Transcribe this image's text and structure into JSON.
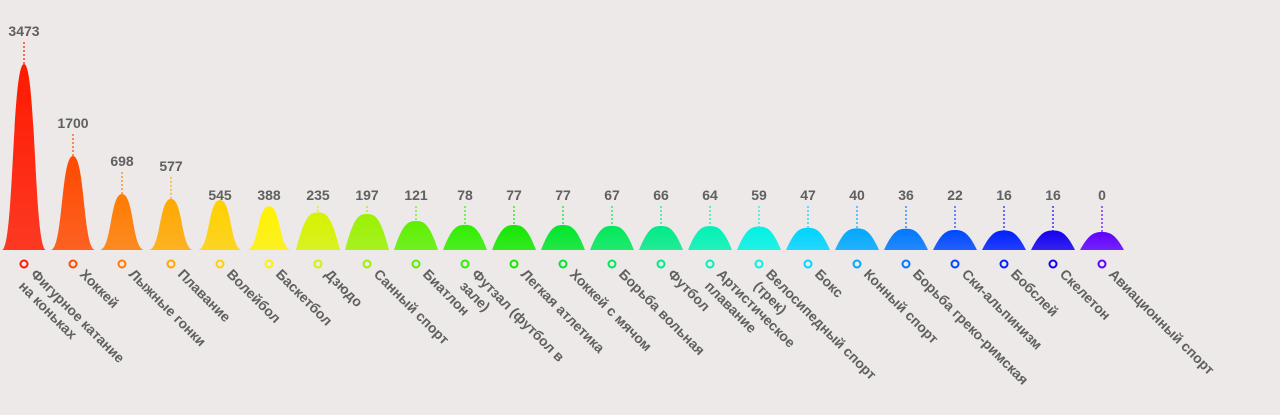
{
  "chart_data": {
    "type": "area",
    "title": "",
    "xlabel": "",
    "ylabel": "",
    "legend": "none",
    "grid": false,
    "categories": [
      [
        "Фигурное катание",
        "на коньках"
      ],
      [
        "Хоккей"
      ],
      [
        "Лыжные гонки"
      ],
      [
        "Плавание"
      ],
      [
        "Волейбол"
      ],
      [
        "Баскетбол"
      ],
      [
        "Дзюдо"
      ],
      [
        "Санный спорт"
      ],
      [
        "Биатлон"
      ],
      [
        "Футзал (футбол в",
        "зале)"
      ],
      [
        "Легкая атлетика"
      ],
      [
        "Хоккей с мячом"
      ],
      [
        "Борьба вольная"
      ],
      [
        "Футбол"
      ],
      [
        "Артистическое",
        "плавание"
      ],
      [
        "Велосипедный спорт",
        "(трек)"
      ],
      [
        "Бокс"
      ],
      [
        "Конный спорт"
      ],
      [
        "Борьба греко-римская"
      ],
      [
        "Ски-альпинизм"
      ],
      [
        "Бобслей"
      ],
      [
        "Скелетон"
      ],
      [
        "Авиационный спорт"
      ]
    ],
    "values": [
      3473,
      1700,
      698,
      577,
      545,
      388,
      235,
      197,
      121,
      78,
      77,
      77,
      67,
      66,
      64,
      59,
      47,
      40,
      36,
      22,
      16,
      16,
      0
    ],
    "colors": [
      "#ff1a00",
      "#ff4a00",
      "#ff7a00",
      "#ffa800",
      "#ffd000",
      "#fff200",
      "#d6f200",
      "#9af200",
      "#5cf000",
      "#30ee00",
      "#14e800",
      "#00e62a",
      "#00e85a",
      "#00ea88",
      "#00f2b4",
      "#00f2e4",
      "#00d4ff",
      "#00a8ff",
      "#0078ff",
      "#0048ff",
      "#0020ff",
      "#1400f0",
      "#6000ff"
    ]
  }
}
